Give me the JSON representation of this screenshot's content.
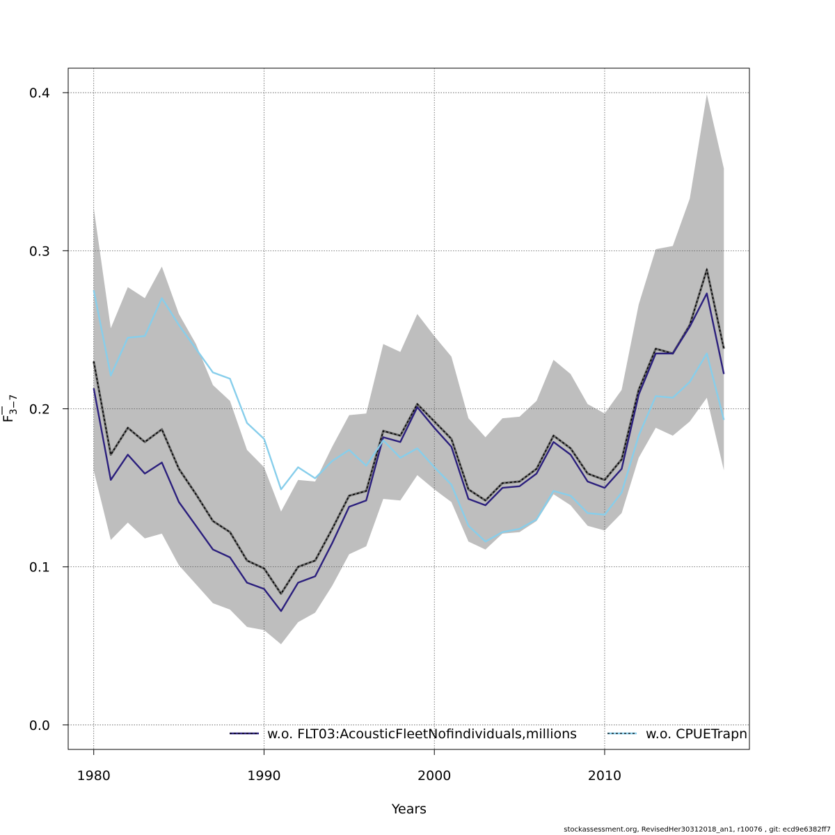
{
  "chart_data": {
    "type": "line",
    "xlabel": "Years",
    "ylabel_main": "F",
    "ylabel_sub": "3−7",
    "xlim": [
      1978.5,
      2018.5
    ],
    "ylim": [
      -0.0155,
      0.4155
    ],
    "xticks": [
      1980,
      1990,
      2000,
      2010
    ],
    "xtick_labels": [
      "1980",
      "1990",
      "2000",
      "2010"
    ],
    "yticks": [
      0.0,
      0.1,
      0.2,
      0.3,
      0.4
    ],
    "ytick_labels": [
      "0.0",
      "0.1",
      "0.2",
      "0.3",
      "0.4"
    ],
    "grid": true,
    "legend_placement": "bottom",
    "x": [
      1980,
      1981,
      1982,
      1983,
      1984,
      1985,
      1986,
      1987,
      1988,
      1989,
      1990,
      1991,
      1992,
      1993,
      1994,
      1995,
      1996,
      1997,
      1998,
      1999,
      2000,
      2001,
      2002,
      2003,
      2004,
      2005,
      2006,
      2007,
      2008,
      2009,
      2010,
      2011,
      2012,
      2013,
      2014,
      2015,
      2016,
      2017
    ],
    "band": {
      "color": "#bebebe",
      "upper": [
        0.327,
        0.251,
        0.277,
        0.27,
        0.29,
        0.26,
        0.241,
        0.215,
        0.205,
        0.174,
        0.163,
        0.135,
        0.155,
        0.154,
        0.176,
        0.196,
        0.197,
        0.241,
        0.236,
        0.26,
        0.246,
        0.233,
        0.194,
        0.182,
        0.194,
        0.195,
        0.205,
        0.231,
        0.222,
        0.203,
        0.197,
        0.212,
        0.266,
        0.301,
        0.303,
        0.333,
        0.399,
        0.352
      ],
      "lower": [
        0.161,
        0.117,
        0.128,
        0.118,
        0.121,
        0.101,
        0.089,
        0.077,
        0.073,
        0.062,
        0.06,
        0.051,
        0.065,
        0.071,
        0.088,
        0.108,
        0.113,
        0.143,
        0.142,
        0.158,
        0.149,
        0.141,
        0.116,
        0.111,
        0.121,
        0.122,
        0.129,
        0.146,
        0.139,
        0.126,
        0.123,
        0.134,
        0.169,
        0.188,
        0.183,
        0.192,
        0.207,
        0.161
      ]
    },
    "series": [
      {
        "color": "#000000",
        "style": "dashed",
        "values": [
          0.23,
          0.171,
          0.188,
          0.179,
          0.187,
          0.162,
          0.146,
          0.129,
          0.122,
          0.104,
          0.099,
          0.083,
          0.1,
          0.104,
          0.124,
          0.145,
          0.148,
          0.186,
          0.183,
          0.203,
          0.192,
          0.181,
          0.149,
          0.142,
          0.153,
          0.154,
          0.162,
          0.183,
          0.175,
          0.159,
          0.155,
          0.168,
          0.212,
          0.238,
          0.235,
          0.253,
          0.288,
          0.238
        ]
      },
      {
        "name": "w.o. FLT03:AcousticFleetNofindividuals,millions",
        "color": "#2b1f7d",
        "style": "solid",
        "values": [
          0.213,
          0.155,
          0.171,
          0.159,
          0.166,
          0.141,
          0.126,
          0.111,
          0.106,
          0.09,
          0.086,
          0.072,
          0.09,
          0.094,
          0.115,
          0.138,
          0.142,
          0.182,
          0.179,
          0.201,
          0.188,
          0.176,
          0.143,
          0.139,
          0.15,
          0.151,
          0.159,
          0.179,
          0.171,
          0.154,
          0.15,
          0.162,
          0.209,
          0.235,
          0.235,
          0.252,
          0.273,
          0.222
        ]
      },
      {
        "name": "w.o. CPUETrapn",
        "color": "#87ceeb",
        "style": "solid",
        "values": [
          0.275,
          0.221,
          0.245,
          0.246,
          0.27,
          0.253,
          0.238,
          0.223,
          0.219,
          0.191,
          0.181,
          0.149,
          0.163,
          0.156,
          0.167,
          0.174,
          0.164,
          0.18,
          0.169,
          0.175,
          0.163,
          0.152,
          0.126,
          0.116,
          0.122,
          0.124,
          0.13,
          0.148,
          0.145,
          0.134,
          0.133,
          0.147,
          0.183,
          0.208,
          0.207,
          0.217,
          0.235,
          0.193
        ]
      }
    ],
    "legend": [
      {
        "label": "w.o. FLT03:AcousticFleetNofindividuals,millions",
        "color": "#2b1f7d"
      },
      {
        "label": "w.o. CPUETrapn",
        "color": "#87ceeb"
      }
    ]
  },
  "footer": "stockassessment.org, RevisedHer30312018_an1, r10076 , git: ecd9e6382ff7"
}
